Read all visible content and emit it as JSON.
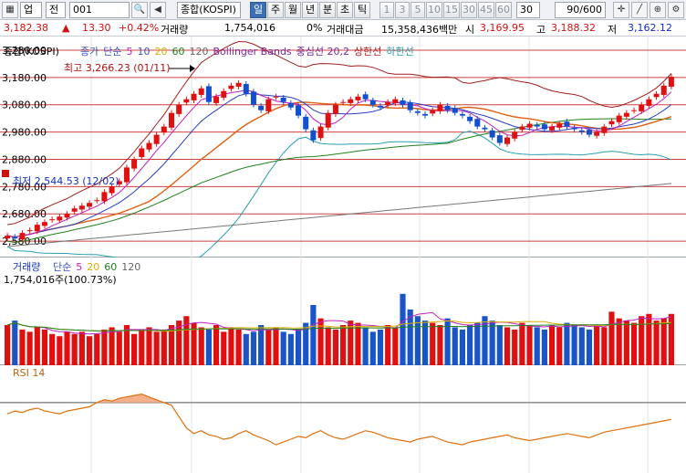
{
  "toolbar": {
    "market": "업",
    "market_mode": "전",
    "code": "001",
    "name": "종합(KOSPI)",
    "periods": [
      "일",
      "주",
      "월",
      "년",
      "분",
      "초",
      "틱"
    ],
    "selected_period": "일",
    "intervals": [
      "1",
      "3",
      "5",
      "10",
      "15",
      "30",
      "45",
      "60"
    ],
    "interval_value": "30",
    "count": "90/600"
  },
  "info": {
    "price": "3,182.38",
    "change_arrow": "▲",
    "change": "13.30",
    "change_pct": "+0.42%",
    "volume_label": "거래량",
    "volume": "1,754,016",
    "volume_ratio": "0%",
    "amount_label": "거래대금",
    "amount": "15,358,436백만",
    "high_label": "시",
    "open": "3,169.95",
    "hi_label": "고",
    "high": "3,188.32",
    "lo_label": "저",
    "low": "3,162.12"
  },
  "price_pane": {
    "legend_title": "종합(KOSPI)",
    "legend_items": [
      {
        "label": "종가",
        "color": "#3a55c8"
      },
      {
        "label": "단순",
        "color": "#3a55c8"
      },
      {
        "label": "5",
        "color": "#c020c0"
      },
      {
        "label": "10",
        "color": "#3a55c8"
      },
      {
        "label": "20",
        "color": "#d8b000"
      },
      {
        "label": "60",
        "color": "#208020"
      },
      {
        "label": "120",
        "color": "#666666"
      },
      {
        "label": "Bollinger Bands",
        "color": "#7a2aa0"
      },
      {
        "label": "중심선 20,2",
        "color": "#7a2aa0"
      },
      {
        "label": "상한선",
        "color": "#b02020"
      },
      {
        "label": "하한선",
        "color": "#2aa0b0"
      }
    ],
    "y_ticks": [
      "3,280.00",
      "3,180.00",
      "3,080.00",
      "2,980.00",
      "2,880.00",
      "2,780.00",
      "2,680.00",
      "2,580.00"
    ],
    "max_label": "최고 3,266.23 (01/11)",
    "min_label": "최저 2,544.53 (12/02)"
  },
  "volume_pane": {
    "legend_title": "거래량",
    "legend_items": [
      {
        "label": "단순",
        "color": "#3a55c8"
      },
      {
        "label": "5",
        "color": "#c020c0"
      },
      {
        "label": "20",
        "color": "#d8b000"
      },
      {
        "label": "60",
        "color": "#208020"
      },
      {
        "label": "120",
        "color": "#666666"
      }
    ],
    "value": "1,754,016주(100.73%)"
  },
  "rsi_pane": {
    "legend_title": "RSI 14"
  },
  "chart_data": [
    {
      "type": "candlestick",
      "series": [
        {
          "name": "종합(KOSPI)",
          "close_last": 3182.38
        }
      ],
      "closes": [
        2600,
        2590,
        2610,
        2620,
        2640,
        2650,
        2660,
        2670,
        2680,
        2700,
        2710,
        2720,
        2730,
        2760,
        2780,
        2800,
        2850,
        2880,
        2920,
        2940,
        2970,
        3000,
        3050,
        3080,
        3100,
        3120,
        3140,
        3090,
        3110,
        3130,
        3150,
        3160,
        3120,
        3080,
        3060,
        3100,
        3110,
        3090,
        3070,
        3040,
        2990,
        2950,
        3000,
        3050,
        3080,
        3090,
        3100,
        3110,
        3100,
        3080,
        3070,
        3090,
        3100,
        3080,
        3060,
        3050,
        3040,
        3060,
        3080,
        3060,
        3050,
        3040,
        3020,
        3000,
        2990,
        2960,
        2940,
        2960,
        2980,
        3000,
        3010,
        3000,
        2990,
        3000,
        3010,
        3000,
        2990,
        2980,
        2970,
        2980,
        3000,
        3020,
        3040,
        3050,
        3060,
        3080,
        3100,
        3120,
        3150,
        3182.38
      ],
      "ma": [
        {
          "name": "5",
          "color": "#c020c0"
        },
        {
          "name": "10",
          "color": "#3a55c8"
        },
        {
          "name": "20",
          "color": "#d8b000"
        },
        {
          "name": "60",
          "color": "#208020"
        },
        {
          "name": "120",
          "color": "#666666"
        }
      ],
      "ylim": [
        2520,
        3330
      ]
    },
    {
      "type": "bar",
      "title": "거래량",
      "values": [
        18,
        20,
        16,
        15,
        17,
        16,
        14,
        13,
        15,
        14,
        15,
        13,
        14,
        16,
        17,
        15,
        18,
        14,
        16,
        17,
        15,
        16,
        18,
        20,
        22,
        19,
        17,
        16,
        18,
        15,
        17,
        16,
        14,
        15,
        18,
        16,
        17,
        15,
        14,
        16,
        19,
        27,
        21,
        17,
        16,
        18,
        20,
        19,
        17,
        15,
        16,
        18,
        17,
        32,
        25,
        22,
        20,
        19,
        18,
        21,
        17,
        16,
        18,
        19,
        22,
        20,
        18,
        17,
        16,
        19,
        18,
        17,
        16,
        18,
        17,
        19,
        18,
        17,
        16,
        18,
        17,
        24,
        21,
        20,
        19,
        22,
        23,
        20,
        21,
        23
      ]
    },
    {
      "type": "line",
      "title": "RSI 14",
      "values": [
        62,
        64,
        63,
        65,
        66,
        64,
        63,
        62,
        64,
        65,
        66,
        67,
        70,
        72,
        71,
        73,
        74,
        75,
        76,
        74,
        72,
        70,
        68,
        60,
        52,
        48,
        50,
        47,
        46,
        44,
        45,
        48,
        50,
        47,
        45,
        43,
        40,
        42,
        44,
        46,
        45,
        48,
        50,
        47,
        45,
        44,
        46,
        48,
        50,
        49,
        47,
        45,
        44,
        43,
        42,
        44,
        45,
        46,
        44,
        42,
        41,
        40,
        42,
        43,
        44,
        45,
        46,
        47,
        45,
        44,
        43,
        44,
        45,
        46,
        47,
        48,
        47,
        46,
        45,
        47,
        49,
        50,
        51,
        52,
        53,
        54,
        55,
        56,
        57,
        58
      ]
    }
  ]
}
